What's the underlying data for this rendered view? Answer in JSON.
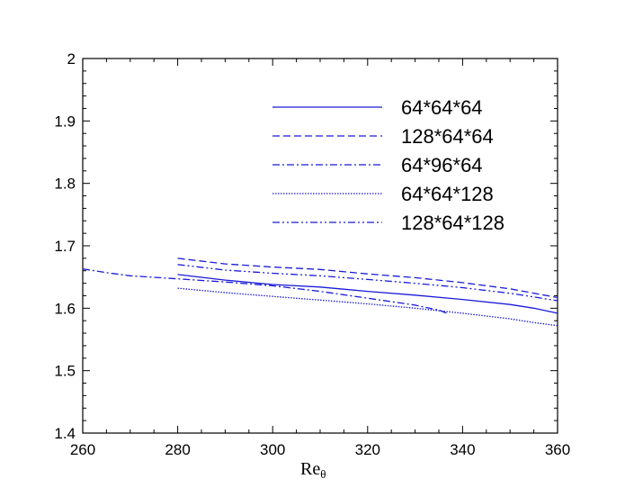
{
  "chart_data": {
    "type": "line",
    "title": "",
    "xlabel": "Re",
    "xlabel_sub": "θ",
    "ylabel": "",
    "xlim": [
      260,
      360
    ],
    "ylim": [
      1.4,
      2.0
    ],
    "xticks": [
      260,
      280,
      300,
      320,
      340,
      360
    ],
    "yticks": [
      1.4,
      1.5,
      1.6,
      1.7,
      1.8,
      1.9,
      2.0
    ],
    "xtick_labels": [
      "260",
      "280",
      "300",
      "320",
      "340",
      "360"
    ],
    "ytick_labels": [
      "1.4",
      "1.5",
      "1.6",
      "1.7",
      "1.8",
      "1.9",
      "2"
    ],
    "grid": false,
    "legend": "top-right",
    "line_color": "#1a1ad8",
    "series": [
      {
        "name": "64*64*64",
        "style": "solid",
        "x": [
          280,
          290,
          300,
          310,
          320,
          330,
          340,
          350,
          355,
          360
        ],
        "y": [
          1.654,
          1.645,
          1.638,
          1.634,
          1.627,
          1.621,
          1.614,
          1.606,
          1.6,
          1.592
        ]
      },
      {
        "name": "128*64*64",
        "style": "dashed",
        "x": [
          280,
          290,
          300,
          310,
          320,
          330,
          340,
          350,
          360
        ],
        "y": [
          1.68,
          1.671,
          1.666,
          1.662,
          1.655,
          1.649,
          1.641,
          1.631,
          1.617
        ]
      },
      {
        "name": "64*96*64",
        "style": "dashdot",
        "x": [
          260,
          265,
          270,
          280,
          290,
          300,
          310,
          320,
          330,
          335,
          337
        ],
        "y": [
          1.663,
          1.657,
          1.652,
          1.647,
          1.642,
          1.636,
          1.627,
          1.616,
          1.605,
          1.597,
          1.591
        ]
      },
      {
        "name": "64*64*128",
        "style": "dotted",
        "x": [
          280,
          290,
          300,
          310,
          320,
          330,
          340,
          350,
          355,
          360
        ],
        "y": [
          1.632,
          1.625,
          1.619,
          1.613,
          1.607,
          1.6,
          1.592,
          1.583,
          1.577,
          1.572
        ]
      },
      {
        "name": "128*64*128",
        "style": "dashdotdot",
        "x": [
          280,
          290,
          300,
          310,
          320,
          330,
          340,
          350,
          360
        ],
        "y": [
          1.67,
          1.661,
          1.656,
          1.652,
          1.646,
          1.64,
          1.633,
          1.624,
          1.612
        ]
      }
    ]
  }
}
